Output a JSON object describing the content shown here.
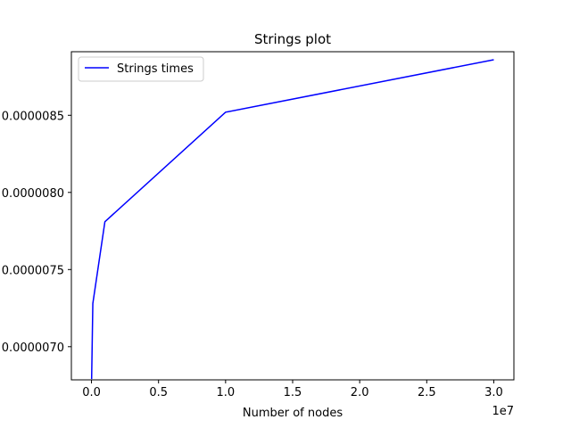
{
  "chart_data": {
    "type": "line",
    "title": "Strings plot",
    "xlabel": "Number of nodes",
    "ylabel": "",
    "x_offset_label": "1e7",
    "xlim": [
      -1500000,
      31500000
    ],
    "ylim": [
      6.785e-06,
      8.912e-06
    ],
    "x_ticks": [
      {
        "value": 0,
        "label": "0.0"
      },
      {
        "value": 5000000,
        "label": "0.5"
      },
      {
        "value": 10000000,
        "label": "1.0"
      },
      {
        "value": 15000000,
        "label": "1.5"
      },
      {
        "value": 20000000,
        "label": "2.0"
      },
      {
        "value": 25000000,
        "label": "2.5"
      },
      {
        "value": 30000000,
        "label": "3.0"
      }
    ],
    "y_ticks": [
      {
        "value": 7e-06,
        "label": "0.0000070"
      },
      {
        "value": 7.5e-06,
        "label": "0.0000075"
      },
      {
        "value": 8e-06,
        "label": "0.0000080"
      },
      {
        "value": 8.5e-06,
        "label": "0.0000085"
      }
    ],
    "grid": false,
    "legend": {
      "position": "top-left",
      "show": true
    },
    "series": [
      {
        "name": "Strings times",
        "color": "#0000ff",
        "x": [
          10000,
          100000,
          1000000,
          10000000,
          30000000
        ],
        "y": [
          6.79e-06,
          7.28e-06,
          7.81e-06,
          8.52e-06,
          8.86e-06
        ]
      }
    ]
  }
}
